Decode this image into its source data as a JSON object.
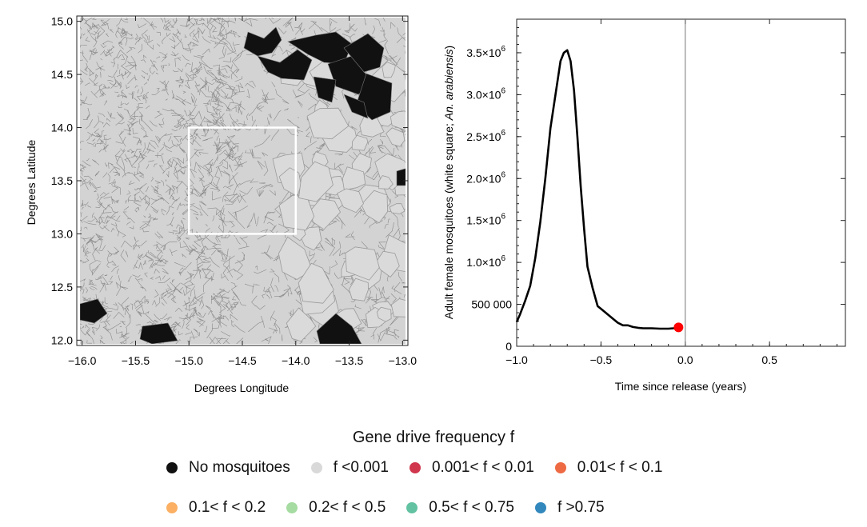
{
  "map": {
    "xlabel": "Degrees Longitude",
    "ylabel": "Degrees Latitude",
    "x_ticks": [
      "-16.0",
      "-15.5",
      "-15.0",
      "-14.5",
      "-14.0",
      "-13.5",
      "-13.0"
    ],
    "y_ticks": [
      "12.0",
      "12.5",
      "13.0",
      "13.5",
      "14.0",
      "14.5",
      "15.0"
    ],
    "xlim": [
      -16.05,
      -12.95
    ],
    "ylim": [
      11.95,
      15.05
    ],
    "white_square": {
      "lon": [
        -15.0,
        -14.0
      ],
      "lat": [
        13.0,
        14.0
      ]
    }
  },
  "chart_data": {
    "type": "line",
    "xlabel": "Time since release (years)",
    "ylabel_prefix": "Adult female mosquitoes (white square; ",
    "ylabel_italic": "An. arabiensis",
    "ylabel_suffix": ")",
    "xlim": [
      -1.0,
      0.95
    ],
    "ylim": [
      0,
      3900000
    ],
    "x_ticks": [
      "-1.0",
      "-0.5",
      "0.0",
      "0.5"
    ],
    "y_ticks": [
      {
        "base": "0",
        "exp": ""
      },
      {
        "base": "500 000",
        "exp": ""
      },
      {
        "base": "1.0×10",
        "exp": "6"
      },
      {
        "base": "1.5×10",
        "exp": "6"
      },
      {
        "base": "2.0×10",
        "exp": "6"
      },
      {
        "base": "2.5×10",
        "exp": "6"
      },
      {
        "base": "3.0×10",
        "exp": "6"
      },
      {
        "base": "3.5×10",
        "exp": "6"
      }
    ],
    "series": [
      {
        "x": [
          -1.0,
          -0.98,
          -0.95,
          -0.92,
          -0.89,
          -0.86,
          -0.83,
          -0.8,
          -0.77,
          -0.74,
          -0.72,
          -0.7,
          -0.68,
          -0.66,
          -0.64,
          -0.62,
          -0.6,
          -0.58,
          -0.55,
          -0.52,
          -0.49,
          -0.46,
          -0.43,
          -0.4,
          -0.37,
          -0.34,
          -0.31,
          -0.28,
          -0.25,
          -0.2,
          -0.15,
          -0.1,
          -0.07,
          -0.04
        ],
        "y": [
          290000,
          380000,
          540000,
          720000,
          1050000,
          1480000,
          2000000,
          2600000,
          3000000,
          3400000,
          3500000,
          3530000,
          3400000,
          3050000,
          2500000,
          1900000,
          1400000,
          950000,
          700000,
          480000,
          430000,
          380000,
          330000,
          280000,
          250000,
          250000,
          230000,
          220000,
          215000,
          215000,
          210000,
          210000,
          215000,
          225000
        ]
      }
    ],
    "marker": {
      "x": -0.04,
      "y": 225000,
      "color": "#ff0000"
    },
    "vline_x": 0.0
  },
  "legend": {
    "title": "Gene drive frequency f",
    "row1": [
      {
        "label": "No mosquitoes",
        "color": "#111111"
      },
      {
        "label": "f <0.001",
        "color": "#d9d9d9"
      },
      {
        "label": "0.001< f < 0.01",
        "color": "#d0374d"
      },
      {
        "label": "0.01< f < 0.1",
        "color": "#ee6a43"
      }
    ],
    "row2": [
      {
        "label": "0.1< f < 0.2",
        "color": "#fbb063"
      },
      {
        "label": "0.2< f < 0.5",
        "color": "#a6dba1"
      },
      {
        "label": "0.5< f < 0.75",
        "color": "#62c2a2"
      },
      {
        "label": "f >0.75",
        "color": "#3288bd"
      }
    ]
  }
}
